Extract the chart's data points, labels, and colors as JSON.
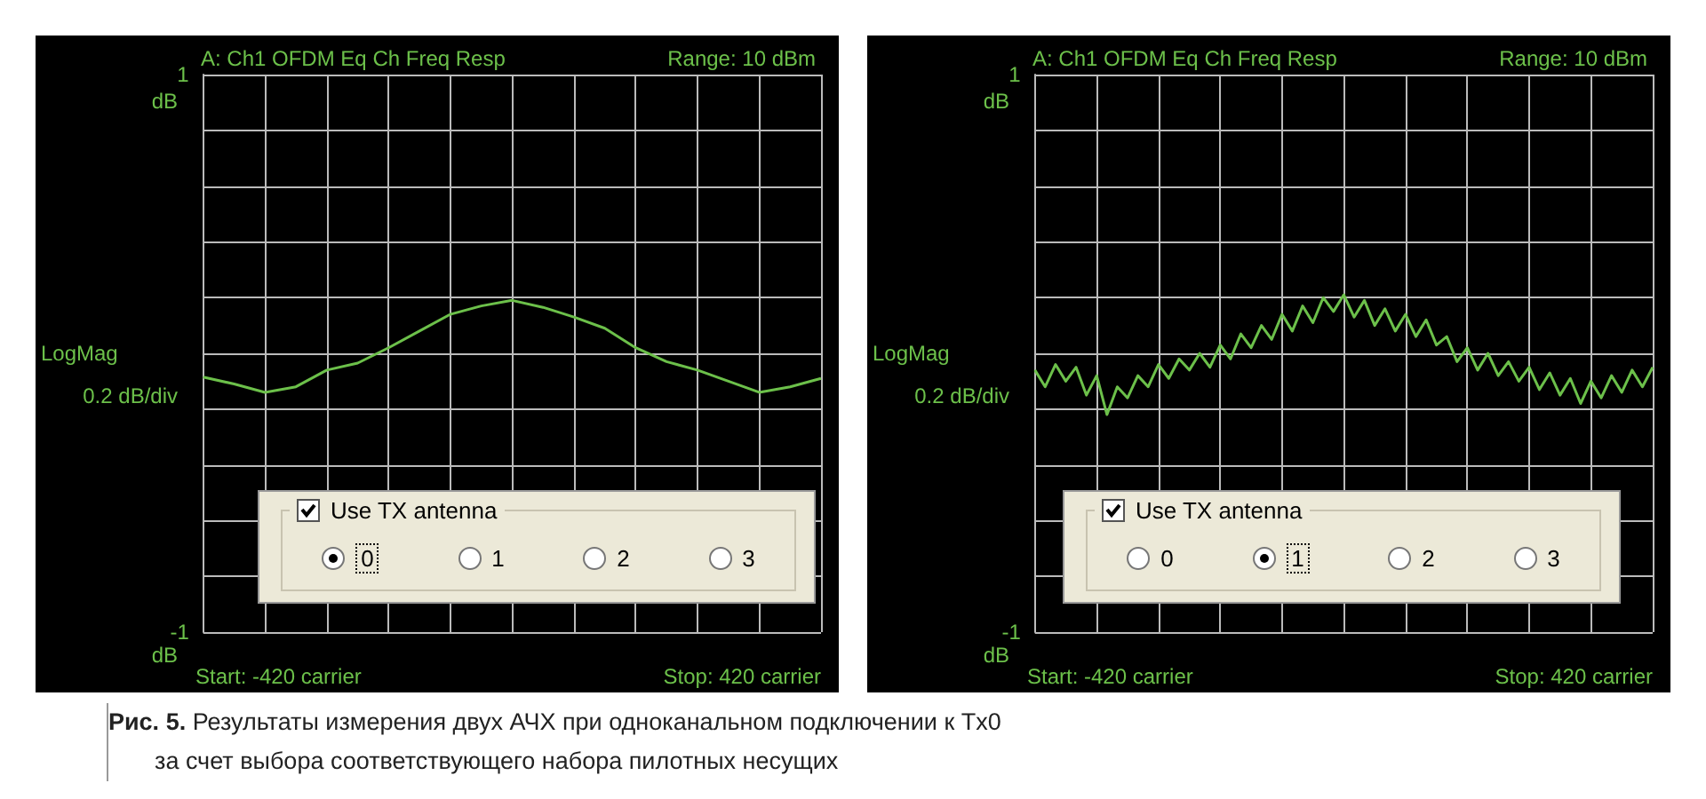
{
  "chart_data": [
    {
      "type": "line",
      "title": "A: Ch1 OFDM Eq Ch Freq Resp",
      "subtitle": "Range: 10 dBm",
      "ylabel": "LogMag",
      "annotations": [
        "Use TX antenna",
        "0",
        "1",
        "2",
        "3",
        "dB",
        "0.2 dB/div",
        "dB",
        "Start: -420 carrier",
        "Stop: 420 carrier",
        "Рис. 5.",
        "Результаты измерения двух АЧХ при одноканальном подключении к Tx0",
        "за счет выбора соответствующего набора пилотных несущих"
      ],
      "categories": [
        null,
        null,
        null,
        null,
        null,
        null,
        null,
        null,
        null,
        null,
        null,
        null,
        null,
        null,
        null,
        null,
        null,
        null,
        null,
        null,
        null
      ],
      "series": [
        {
          "color": "#6cc04a",
          "values": [
            -0.085,
            -0.11,
            -0.14,
            -0.12,
            -0.06,
            -0.035,
            0.02,
            0.08,
            0.14,
            0.17,
            0.19,
            0.165,
            0.13,
            0.09,
            0.02,
            -0.03,
            -0.06,
            -0.1,
            -0.14,
            -0.12,
            -0.09
          ]
        }
      ],
      "ylim": [
        -1,
        1
      ],
      "yticks": [
        {
          "value": -1,
          "label": "-1"
        },
        {
          "value": -0.8,
          "label": null
        },
        {
          "value": -0.6,
          "label": null
        },
        {
          "value": -0.4,
          "label": null
        },
        {
          "value": -0.2,
          "label": null
        },
        {
          "value": 0,
          "label": null
        },
        {
          "value": 0.2,
          "label": null
        },
        {
          "value": 0.4,
          "label": null
        },
        {
          "value": 0.6,
          "label": null
        },
        {
          "value": 0.8,
          "label": null
        },
        {
          "value": 1,
          "label": "1"
        }
      ],
      "grid": true,
      "tick_labels": "y"
    },
    {
      "type": "line",
      "title": "A: Ch1 OFDM Eq Ch Freq Resp",
      "subtitle": "Range: 10 dBm",
      "ylabel": "LogMag",
      "annotations": [
        "Use TX antenna",
        "0",
        "1",
        "2",
        "3",
        "dB",
        "0.2 dB/div",
        "dB",
        "Start: -420 carrier",
        "Stop: 420 carrier"
      ],
      "categories": [
        null,
        null,
        null,
        null,
        null,
        null,
        null,
        null,
        null,
        null,
        null,
        null,
        null,
        null,
        null,
        null,
        null,
        null,
        null,
        null,
        null,
        null,
        null,
        null,
        null,
        null,
        null,
        null,
        null,
        null,
        null,
        null,
        null,
        null,
        null,
        null,
        null,
        null,
        null,
        null,
        null,
        null,
        null,
        null,
        null,
        null,
        null,
        null,
        null,
        null,
        null,
        null,
        null,
        null,
        null,
        null,
        null,
        null,
        null,
        null,
        null
      ],
      "series": [
        {
          "color": "#6cc04a",
          "values": [
            -0.06,
            -0.12,
            -0.04,
            -0.1,
            -0.05,
            -0.15,
            -0.08,
            -0.22,
            -0.12,
            -0.16,
            -0.08,
            -0.12,
            -0.04,
            -0.09,
            -0.02,
            -0.06,
            0.0,
            -0.05,
            0.03,
            -0.02,
            0.07,
            0.02,
            0.1,
            0.05,
            0.14,
            0.08,
            0.17,
            0.11,
            0.2,
            0.15,
            0.21,
            0.13,
            0.19,
            0.1,
            0.16,
            0.08,
            0.14,
            0.06,
            0.12,
            0.03,
            0.06,
            -0.03,
            0.02,
            -0.06,
            0.0,
            -0.08,
            -0.03,
            -0.1,
            -0.05,
            -0.13,
            -0.07,
            -0.15,
            -0.09,
            -0.18,
            -0.1,
            -0.16,
            -0.08,
            -0.14,
            -0.06,
            -0.12,
            -0.05
          ]
        }
      ],
      "ylim": [
        -1,
        1
      ],
      "yticks": [
        {
          "value": -1,
          "label": "-1"
        },
        {
          "value": -0.8,
          "label": null
        },
        {
          "value": -0.6,
          "label": null
        },
        {
          "value": -0.4,
          "label": null
        },
        {
          "value": -0.2,
          "label": null
        },
        {
          "value": 0,
          "label": null
        },
        {
          "value": 0.2,
          "label": null
        },
        {
          "value": 0.4,
          "label": null
        },
        {
          "value": 0.6,
          "label": null
        },
        {
          "value": 0.8,
          "label": null
        },
        {
          "value": 1,
          "label": "1"
        }
      ],
      "grid": true,
      "tick_labels": "y"
    }
  ]
}
